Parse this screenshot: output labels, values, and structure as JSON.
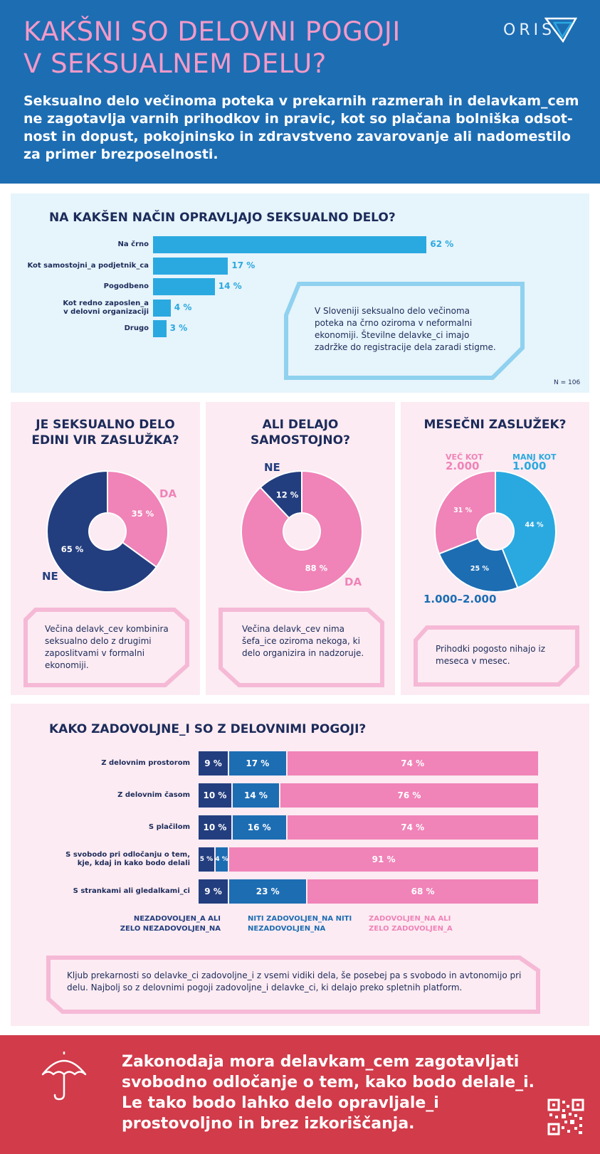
{
  "header": {
    "title_lines": [
      "KAKŠNI SO DELOVNI POGOJI",
      "V SEKSUALNEM DELU?"
    ],
    "logo_text": "ORIS",
    "intro_lines": [
      "Seksualno delo večinoma poteka v prekarnih razmerah in delavkam_cem",
      "ne zagotavlja varnih prihodkov in pravic, kot so plačana bolniška odsot-",
      "nost in dopust, pokojninsko in zdravstveno zavarovanje ali nadomestilo",
      "za primer brezposelnosti."
    ],
    "colors": {
      "header_bg": "#1d6db3",
      "title": "#f39ac8"
    }
  },
  "work_mode": {
    "title": "NA KAKŠEN NAČIN OPRAVLJAJO SEKSUALNO DELO?",
    "n_label": "N = 106",
    "note_lines": [
      "V Sloveniji seksualno delo večinoma",
      "poteka na črno oziroma v neformalni",
      "ekonomiji. Številne delavke_ci imajo",
      "zadržke do registracije dela zaradi stigme."
    ]
  },
  "only_income": {
    "title_lines": [
      "JE SEKSUALNO DELO",
      "EDINI VIR ZASLUŽKA?"
    ],
    "note_lines": [
      "Večina delavk_cev kombinira",
      "seksualno delo z drugimi",
      "zaposlitvami v formalni",
      "ekonomiji."
    ]
  },
  "independent": {
    "title_lines": [
      "ALI DELAJO",
      "SAMOSTOJNO?"
    ],
    "note_lines": [
      "Večina delavk_cev nima",
      "šefa_ice oziroma nekoga, ki",
      "delo organizira in nadzoruje."
    ]
  },
  "earnings": {
    "title": "MESEČNI ZASLUŽEK?",
    "note_lines": [
      "Prihodki pogosto nihajo iz",
      "meseca v mesec."
    ]
  },
  "satisfaction": {
    "title": "KAKO ZADOVOLJNE_I SO Z DELOVNIMI POGOJI?",
    "legend": [
      {
        "lines": [
          "NEZADOVOLJEN_A ALI",
          "ZELO NEZADOVOLJEN_NA"
        ],
        "color": "#233e7f"
      },
      {
        "lines": [
          "NITI ZADOVOLJEN_NA NITI",
          "NEZADOVOLJEN_NA"
        ],
        "color": "#1d6db3"
      },
      {
        "lines": [
          "ZADOVOLJEN_NA ALI",
          "ZELO ZADOVOLJEN_A"
        ],
        "color": "#f083b8"
      }
    ],
    "note_lines": [
      "Kljub prekarnosti so delavke_ci zadovoljne_i z vsemi vidiki dela, še posebej pa s svobodo in avtonomijo pri",
      "delu. Najbolj so z delovnimi pogoji zadovoljne_i delavke_ci, ki delajo preko spletnih platform."
    ]
  },
  "footer": {
    "lines": [
      "Zakonodaja mora delavkam_cem zagotavljati",
      "svobodno odločanje o tem, kako bodo delale_i.",
      "Le tako bodo lahko delo opravljale_i",
      "prostovoljno in brez izkoriščanja."
    ],
    "icon": "umbrella-icon",
    "color": "#d13b4a"
  },
  "chart_data": [
    {
      "type": "bar",
      "orientation": "horizontal",
      "title": "NA KAKŠEN NAČIN OPRAVLJAJO SEKSUALNO DELO?",
      "categories": [
        [
          "Na črno"
        ],
        [
          "Kot samostojni_a podjetnik_ca"
        ],
        [
          "Pogodbeno"
        ],
        [
          "Kot redno zaposlen_a",
          "v delovni organizaciji"
        ],
        [
          "Drugo"
        ]
      ],
      "values": [
        62,
        17,
        14,
        4,
        3
      ],
      "value_labels": [
        "62 %",
        "17 %",
        "14 %",
        "4 %",
        "3 %"
      ],
      "unit": "%",
      "xlim": [
        0,
        100
      ],
      "color": "#2aa9e0"
    },
    {
      "type": "pie",
      "donut": true,
      "title": "JE SEKSUALNO DELO EDINI VIR ZASLUŽKA?",
      "slices": [
        {
          "label": "DA",
          "value": 35,
          "value_label": "35 %",
          "color": "#f083b8"
        },
        {
          "label": "NE",
          "value": 65,
          "value_label": "65 %",
          "color": "#233e7f"
        }
      ]
    },
    {
      "type": "pie",
      "donut": true,
      "title": "ALI DELAJO SAMOSTOJNO?",
      "slices": [
        {
          "label": "DA",
          "value": 88,
          "value_label": "88 %",
          "color": "#f083b8"
        },
        {
          "label": "NE",
          "value": 12,
          "value_label": "12 %",
          "color": "#233e7f"
        }
      ]
    },
    {
      "type": "pie",
      "donut": true,
      "title": "MESEČNI ZASLUŽEK?",
      "slices": [
        {
          "label": "MANJ KOT",
          "sublabel": "1.000",
          "value": 44,
          "value_label": "44 %",
          "color": "#2aa9e0"
        },
        {
          "label": "1.000–2.000",
          "value": 25,
          "value_label": "25 %",
          "color": "#1d6db3"
        },
        {
          "label": "VEČ KOT",
          "sublabel": "2.000",
          "value": 31,
          "value_label": "31 %",
          "color": "#f083b8"
        }
      ]
    },
    {
      "type": "bar",
      "orientation": "horizontal",
      "stacked": true,
      "title": "KAKO ZADOVOLJNE_I SO Z DELOVNIMI POGOJI?",
      "categories": [
        [
          "Z delovnim prostorom"
        ],
        [
          "Z delovnim časom"
        ],
        [
          "S plačilom"
        ],
        [
          "S svobodo pri odločanju o tem,",
          "kje, kdaj in kako bodo delali"
        ],
        [
          "S strankami ali gledalkami_ci"
        ]
      ],
      "series": [
        {
          "name": "NEZADOVOLJEN_A ALI ZELO NEZADOVOLJEN_NA",
          "values": [
            9,
            10,
            10,
            5,
            9
          ],
          "labels": [
            "9 %",
            "10 %",
            "10 %",
            "5 %",
            "9 %"
          ],
          "color": "#233e7f"
        },
        {
          "name": "NITI ZADOVOLJEN_NA NITI NEZADOVOLJEN_NA",
          "values": [
            17,
            14,
            16,
            4,
            23
          ],
          "labels": [
            "17 %",
            "14 %",
            "16 %",
            "4 %",
            "23 %"
          ],
          "color": "#1d6db3"
        },
        {
          "name": "ZADOVOLJEN_NA ALI ZELO ZADOVOLJEN_A",
          "values": [
            74,
            76,
            74,
            91,
            68
          ],
          "labels": [
            "74 %",
            "76 %",
            "74 %",
            "91 %",
            "68 %"
          ],
          "color": "#f083b8"
        }
      ],
      "unit": "%"
    }
  ]
}
